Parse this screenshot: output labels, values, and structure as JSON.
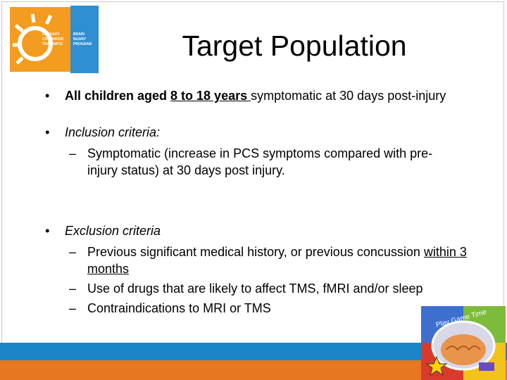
{
  "logo": {
    "left": [
      "CALGARY",
      "CHILDHOOD",
      "TRAUMATIC"
    ],
    "right": [
      "BRAIN",
      "INJURY",
      "PROGRAM"
    ]
  },
  "title": "Target Population",
  "items": [
    {
      "text": [
        "All children aged ",
        "8 to 18 years ",
        "symptomatic at 30 days post-injury"
      ]
    },
    {
      "text": "Inclusion criteria:",
      "sub": [
        "Symptomatic (increase in PCS symptoms compared with pre-injury status) at 30 days post injury."
      ]
    },
    {
      "text": "Exclusion criteria",
      "sub": [
        [
          "Previous significant medical history, or previous concussion ",
          "within 3 months"
        ],
        "Use of drugs that are likely to affect TMS, fMRI and/or sleep",
        "Contraindications to MRI or TMS"
      ]
    }
  ],
  "badge": "Play Game Time"
}
